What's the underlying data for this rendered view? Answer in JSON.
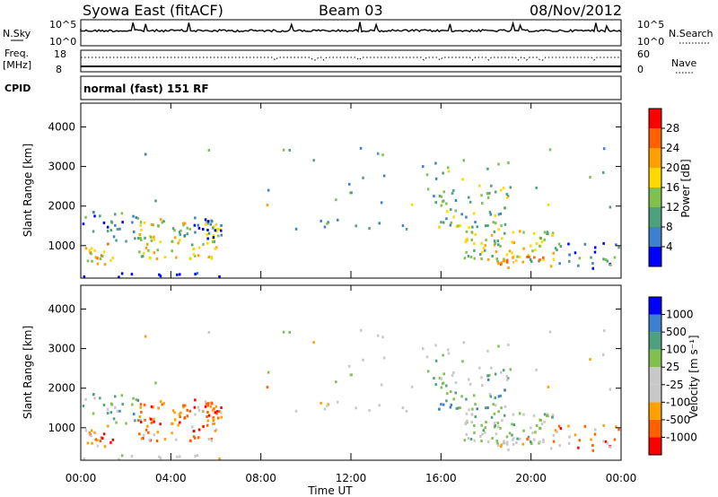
{
  "header": {
    "title": "Syowa East (fitACF)",
    "beam": "Beam 03",
    "date": "08/Nov/2012"
  },
  "strips": {
    "nsky_label": "N.Sky",
    "nsearch_label": "N.Search",
    "nsky_ticks": [
      "10^5",
      "10^0"
    ],
    "nsearch_ticks": [
      "10^5",
      "10^0"
    ],
    "freq_label": "Freq.",
    "freq_unit": "[MHz]",
    "freq_ticks": [
      "18",
      "8"
    ],
    "nave_label": "Nave",
    "nave_ticks": [
      "60",
      "0"
    ],
    "cpid_label": "CPID",
    "cpid_value": "normal (fast) 151 RF"
  },
  "colors": {
    "power_scale": [
      "#0000ff",
      "#3f7fcf",
      "#4fa07f",
      "#7fc04f",
      "#ffd800",
      "#ffa000",
      "#ff6000",
      "#ff0000"
    ],
    "velocity_scale": [
      "#ff0000",
      "#ff6000",
      "#ffa000",
      "#c8c8c8",
      "#c8c8c8",
      "#7fc04f",
      "#4fa07f",
      "#3f7fcf",
      "#0000ff"
    ],
    "trace": "#000000"
  },
  "chart_data": [
    {
      "type": "heatmap",
      "name": "power",
      "ylabel": "Slant Range [km]",
      "xlabel": "Time UT",
      "xlim": [
        0,
        24
      ],
      "ylim": [
        180,
        4600
      ],
      "x_ticks": [
        "00:00",
        "04:00",
        "08:00",
        "12:00",
        "16:00",
        "20:00",
        "00:00"
      ],
      "y_ticks": [
        1000,
        2000,
        3000,
        4000
      ],
      "colorbar": {
        "label": "Power [dB]",
        "ticks": [
          "28",
          "24",
          "20",
          "16",
          "12",
          "8",
          "4"
        ]
      }
    },
    {
      "type": "heatmap",
      "name": "velocity",
      "ylabel": "Slant Range [km]",
      "xlabel": "Time UT",
      "xlim": [
        0,
        24
      ],
      "ylim": [
        180,
        4600
      ],
      "x_ticks": [
        "00:00",
        "04:00",
        "08:00",
        "12:00",
        "16:00",
        "20:00",
        "00:00"
      ],
      "y_ticks": [
        1000,
        2000,
        3000,
        4000
      ],
      "colorbar": {
        "label": "Velocity [m s⁻¹]",
        "ticks": [
          "1000",
          "500",
          "100",
          "25",
          "-25",
          "-100",
          "-500",
          "-1000"
        ]
      }
    }
  ]
}
